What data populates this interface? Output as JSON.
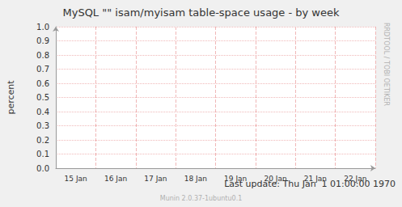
{
  "chart_data": {
    "type": "line",
    "title": "MySQL \"\" isam/myisam table-space usage - by week",
    "y_label": "percent",
    "categories": [
      "15 Jan",
      "16 Jan",
      "17 Jan",
      "18 Jan",
      "19 Jan",
      "20 Jan",
      "21 Jan",
      "22 Jan"
    ],
    "series": [],
    "ylim": [
      0,
      1
    ],
    "yticks": [
      {
        "value": 0,
        "label": "0.0"
      },
      0.1,
      0.2,
      0.3,
      0.4,
      0.5,
      0.6,
      0.7,
      0.8,
      0.9,
      {
        "value": 1,
        "label": "1.0"
      }
    ],
    "grid": true,
    "annotations": [
      "Last update: Thu Jan  1 01:00:00 1970",
      "Munin 2.0.37-1ubuntu0.1",
      "RRDTOOL / TOBI OETIKER"
    ]
  }
}
